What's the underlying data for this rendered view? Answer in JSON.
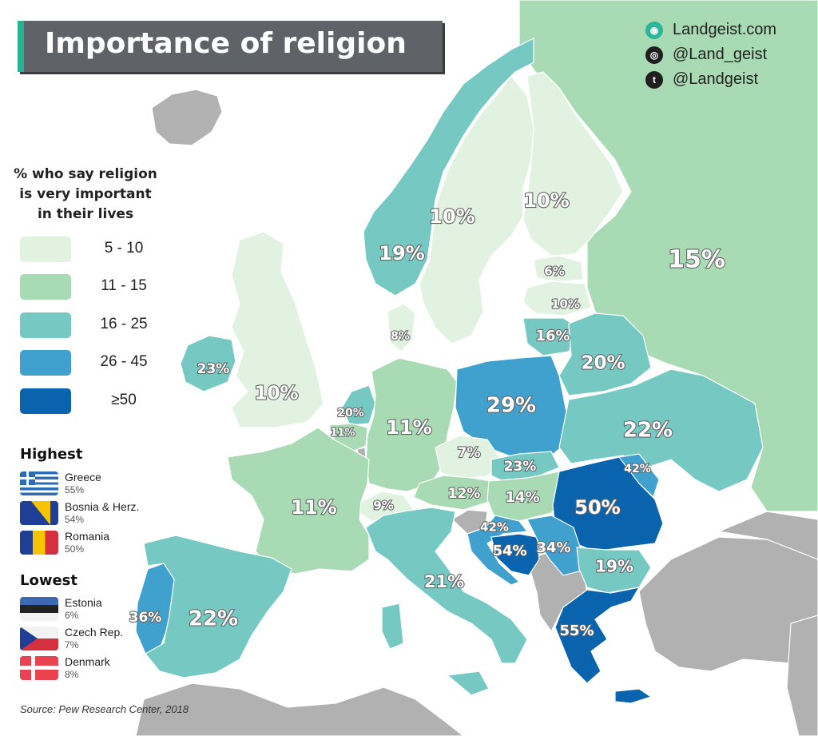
{
  "title": "Importance of religion",
  "credits": [
    {
      "icon": "globe-icon",
      "text": "Landgeist.com"
    },
    {
      "icon": "instagram-icon",
      "text": "@Land_geist"
    },
    {
      "icon": "twitter-icon",
      "text": "@Landgeist"
    }
  ],
  "legend": {
    "title_lines": [
      "% who say religion",
      "is very important",
      "in their lives"
    ],
    "bins": [
      {
        "label": "5  -  10",
        "color": "#e1f3e0"
      },
      {
        "label": "11  -  15",
        "color": "#a8dbb4"
      },
      {
        "label": "16  -  25",
        "color": "#75c9c2"
      },
      {
        "label": "26  -  45",
        "color": "#40a1cf"
      },
      {
        "label": "≥50",
        "color": "#0963ad"
      }
    ]
  },
  "highest": {
    "heading": "Highest",
    "items": [
      {
        "name": "Greece",
        "value": "55%",
        "flag": "greece"
      },
      {
        "name": "Bosnia & Herz.",
        "value": "54%",
        "flag": "bosnia"
      },
      {
        "name": "Romania",
        "value": "50%",
        "flag": "romania"
      }
    ]
  },
  "lowest": {
    "heading": "Lowest",
    "items": [
      {
        "name": "Estonia",
        "value": "6%",
        "flag": "estonia"
      },
      {
        "name": "Czech Rep.",
        "value": "7%",
        "flag": "czech"
      },
      {
        "name": "Denmark",
        "value": "8%",
        "flag": "denmark"
      }
    ]
  },
  "countries": [
    {
      "id": "russia",
      "value": "15%",
      "bin": 1
    },
    {
      "id": "norway",
      "value": "19%",
      "bin": 2
    },
    {
      "id": "sweden",
      "value": "10%",
      "bin": 0
    },
    {
      "id": "finland",
      "value": "10%",
      "bin": 0
    },
    {
      "id": "estonia",
      "value": "6%",
      "bin": 0
    },
    {
      "id": "latvia",
      "value": "10%",
      "bin": 0
    },
    {
      "id": "lithuania",
      "value": "16%",
      "bin": 2
    },
    {
      "id": "denmark",
      "value": "8%",
      "bin": 0
    },
    {
      "id": "belarus",
      "value": "20%",
      "bin": 2
    },
    {
      "id": "ireland",
      "value": "23%",
      "bin": 2
    },
    {
      "id": "united-kingdom",
      "value": "10%",
      "bin": 0
    },
    {
      "id": "netherlands",
      "value": "20%",
      "bin": 2
    },
    {
      "id": "belgium",
      "value": "11%",
      "bin": 1
    },
    {
      "id": "germany",
      "value": "11%",
      "bin": 1
    },
    {
      "id": "poland",
      "value": "29%",
      "bin": 3
    },
    {
      "id": "ukraine",
      "value": "22%",
      "bin": 2
    },
    {
      "id": "czech-republic",
      "value": "7%",
      "bin": 0
    },
    {
      "id": "slovakia",
      "value": "23%",
      "bin": 2
    },
    {
      "id": "moldova",
      "value": "42%",
      "bin": 3
    },
    {
      "id": "austria",
      "value": "12%",
      "bin": 1
    },
    {
      "id": "hungary",
      "value": "14%",
      "bin": 1
    },
    {
      "id": "switzerland",
      "value": "9%",
      "bin": 0
    },
    {
      "id": "france",
      "value": "11%",
      "bin": 1
    },
    {
      "id": "romania",
      "value": "50%",
      "bin": 4
    },
    {
      "id": "croatia",
      "value": "42%",
      "bin": 3
    },
    {
      "id": "bosnia",
      "value": "54%",
      "bin": 4
    },
    {
      "id": "serbia",
      "value": "34%",
      "bin": 3
    },
    {
      "id": "bulgaria",
      "value": "19%",
      "bin": 2
    },
    {
      "id": "italy",
      "value": "21%",
      "bin": 2
    },
    {
      "id": "portugal",
      "value": "36%",
      "bin": 3
    },
    {
      "id": "spain",
      "value": "22%",
      "bin": 2
    },
    {
      "id": "greece",
      "value": "55%",
      "bin": 4
    }
  ],
  "no_data_color": "#b1b1b1",
  "source": "Source: Pew Research Center, 2018"
}
